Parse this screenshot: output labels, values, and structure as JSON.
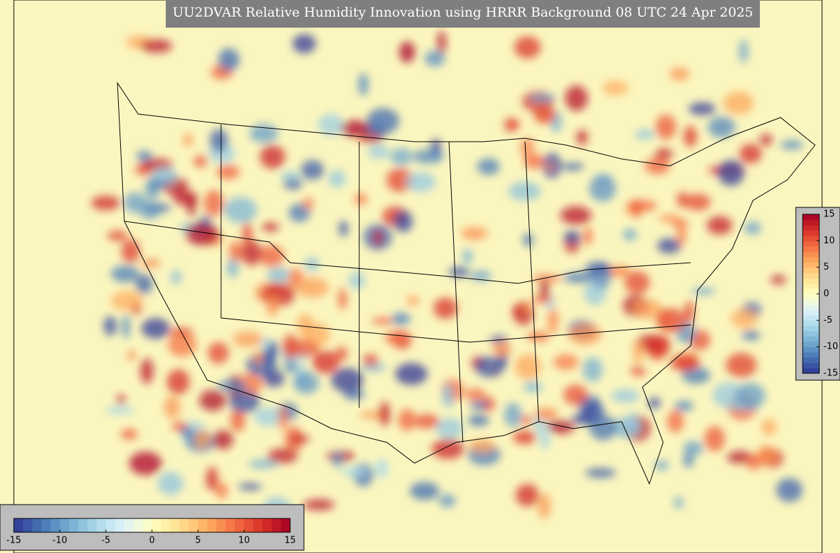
{
  "title": "UU2DVAR Relative Humidity Innovation using HRRR Background 08 UTC 24 Apr 2025",
  "colorbar": {
    "lim": [
      -15,
      15
    ],
    "ticks": [
      -15,
      -10,
      -5,
      0,
      5,
      10,
      15
    ],
    "colors": [
      "#313695",
      "#4575b4",
      "#74add1",
      "#abd9e9",
      "#e0f3f8",
      "#ffffbf",
      "#fee090",
      "#fdae61",
      "#f46d43",
      "#d73027",
      "#a50026"
    ]
  }
}
